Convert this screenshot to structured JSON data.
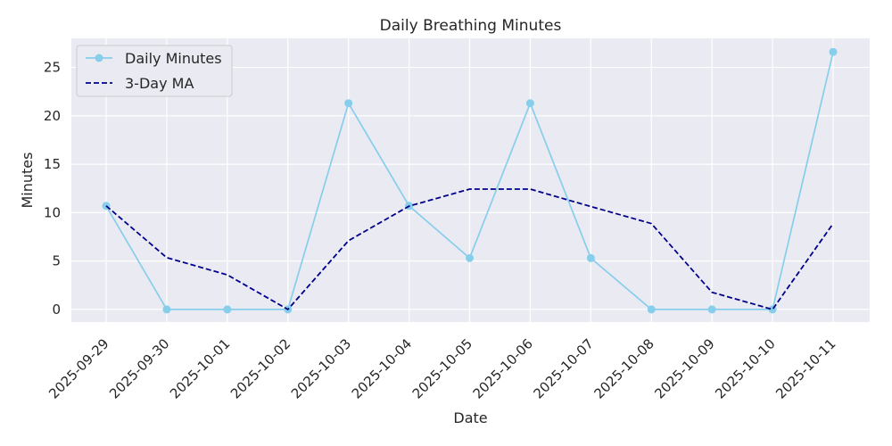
{
  "chart_data": {
    "type": "line",
    "title": "Daily Breathing Minutes",
    "xlabel": "Date",
    "ylabel": "Minutes",
    "categories": [
      "2025-09-29",
      "2025-09-30",
      "2025-10-01",
      "2025-10-02",
      "2025-10-03",
      "2025-10-04",
      "2025-10-05",
      "2025-10-06",
      "2025-10-07",
      "2025-10-08",
      "2025-10-09",
      "2025-10-10",
      "2025-10-11"
    ],
    "ylim": [
      -1.3,
      28
    ],
    "yticks": [
      0,
      5,
      10,
      15,
      20,
      25
    ],
    "grid": true,
    "legend_position": "top-left",
    "series": [
      {
        "name": "Daily Minutes",
        "values": [
          10.7,
          0,
          0,
          0,
          21.3,
          10.7,
          5.3,
          21.3,
          5.3,
          0,
          0,
          0,
          26.6
        ],
        "color": "#87ceeb",
        "style": "solid",
        "marker": "circle"
      },
      {
        "name": "3-Day MA",
        "values": [
          10.7,
          5.35,
          3.57,
          0,
          7.1,
          10.67,
          12.43,
          12.43,
          10.63,
          8.87,
          1.77,
          0,
          8.87
        ],
        "color": "#00008b",
        "style": "dashed",
        "marker": "none"
      }
    ],
    "background": "#eaeaf2",
    "grid_color": "#ffffff"
  }
}
